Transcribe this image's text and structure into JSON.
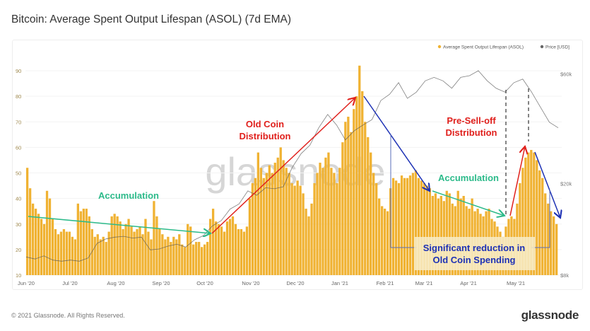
{
  "title": "Bitcoin: Average Spent Output Lifespan (ASOL) (7d EMA)",
  "footer": "© 2021 Glassnode. All Rights Reserved.",
  "logo": "glassnode",
  "watermark": "glassnode",
  "colors": {
    "asol": "#f0b232",
    "price": "#888888",
    "green": "#2cba8a",
    "red": "#e0201c",
    "blue": "#1d31b5"
  },
  "annotations": {
    "accumulation_1": "Accumulation",
    "old_coin_1": "Old Coin",
    "old_coin_2": "Distribution",
    "presell_1": "Pre-Sell-off",
    "presell_2": "Distribution",
    "accumulation_2": "Accumulation",
    "reduction_1": "Significant reduction in",
    "reduction_2": "Old Coin Spending"
  },
  "chart_data": {
    "type": "bar",
    "title": "Bitcoin: Average Spent Output Lifespan (ASOL) (7d EMA)",
    "x_range": [
      "2020-06-01",
      "2021-05-25"
    ],
    "x_ticks": [
      "Jun '20",
      "Jul '20",
      "Aug '20",
      "Sep '20",
      "Oct '20",
      "Nov '20",
      "Dec '20",
      "Jan '21",
      "Feb '21",
      "Mar '21",
      "Apr '21",
      "May '21"
    ],
    "y_left": {
      "ticks": [
        "10",
        "20",
        "30",
        "40",
        "50",
        "60",
        "70",
        "80",
        "90"
      ],
      "range": [
        10,
        95
      ]
    },
    "y_right": {
      "ticks": [
        "$8k",
        "$20k",
        "$60k"
      ],
      "scale": "log",
      "range": [
        8,
        70
      ]
    },
    "legend": {
      "placement": "top-right",
      "entries": [
        "Average Spent Output Lifespan (ASOL)",
        "Price [USD]"
      ]
    },
    "grid": true,
    "series": [
      {
        "name": "Average Spent Output Lifespan (ASOL)",
        "type": "bar",
        "axis": "left",
        "values": [
          52,
          44,
          38,
          36,
          34,
          32,
          30,
          43,
          40,
          32,
          28,
          26,
          27,
          28,
          27,
          27,
          25,
          24,
          38,
          35,
          36,
          36,
          33,
          28,
          25,
          26,
          24,
          25,
          23,
          27,
          33,
          34,
          33,
          31,
          28,
          30,
          32,
          29,
          27,
          28,
          29,
          26,
          32,
          27,
          24,
          39,
          33,
          28,
          26,
          24,
          25,
          23,
          25,
          24,
          26,
          22,
          21,
          30,
          29,
          22,
          23,
          23,
          21,
          22,
          23,
          32,
          36,
          31,
          30,
          29,
          27,
          31,
          32,
          33,
          30,
          28,
          28,
          27,
          29,
          40,
          46,
          48,
          58,
          52,
          48,
          50,
          53,
          50,
          54,
          56,
          60,
          55,
          52,
          50,
          46,
          45,
          47,
          45,
          42,
          36,
          33,
          38,
          46,
          50,
          54,
          52,
          56,
          58,
          52,
          50,
          46,
          52,
          62,
          70,
          72,
          66,
          75,
          80,
          92,
          82,
          70,
          64,
          58,
          50,
          46,
          40,
          37,
          36,
          35,
          44,
          48,
          47,
          46,
          49,
          48,
          48,
          49,
          50,
          51,
          48,
          47,
          46,
          45,
          44,
          41,
          42,
          40,
          41,
          39,
          43,
          42,
          38,
          37,
          43,
          40,
          41,
          37,
          36,
          40,
          35,
          36,
          34,
          33,
          35,
          36,
          32,
          31,
          29,
          27,
          25,
          29,
          32,
          33,
          32,
          38,
          46,
          52,
          56,
          58,
          59,
          58,
          55,
          51,
          48,
          42,
          38,
          35,
          33,
          30
        ]
      },
      {
        "name": "Price [USD]",
        "type": "line",
        "axis": "right",
        "unit": "k USD",
        "values": [
          9.6,
          9.4,
          9.7,
          9.3,
          9.2,
          9.3,
          9.2,
          9.5,
          11,
          11.5,
          11.7,
          11.8,
          11.6,
          11.7,
          10.3,
          10.4,
          10.7,
          10.9,
          10.6,
          11.4,
          11.9,
          13.1,
          13.8,
          15.5,
          16.3,
          18.6,
          17.8,
          19.2,
          19.0,
          19.4,
          23.5,
          27,
          29.4,
          35,
          40,
          36,
          31,
          34,
          36,
          38,
          46,
          49,
          55,
          47,
          50,
          56,
          58,
          56,
          52,
          58,
          59,
          62,
          56,
          52,
          50,
          55,
          57,
          50,
          43,
          37,
          35
        ]
      }
    ]
  }
}
